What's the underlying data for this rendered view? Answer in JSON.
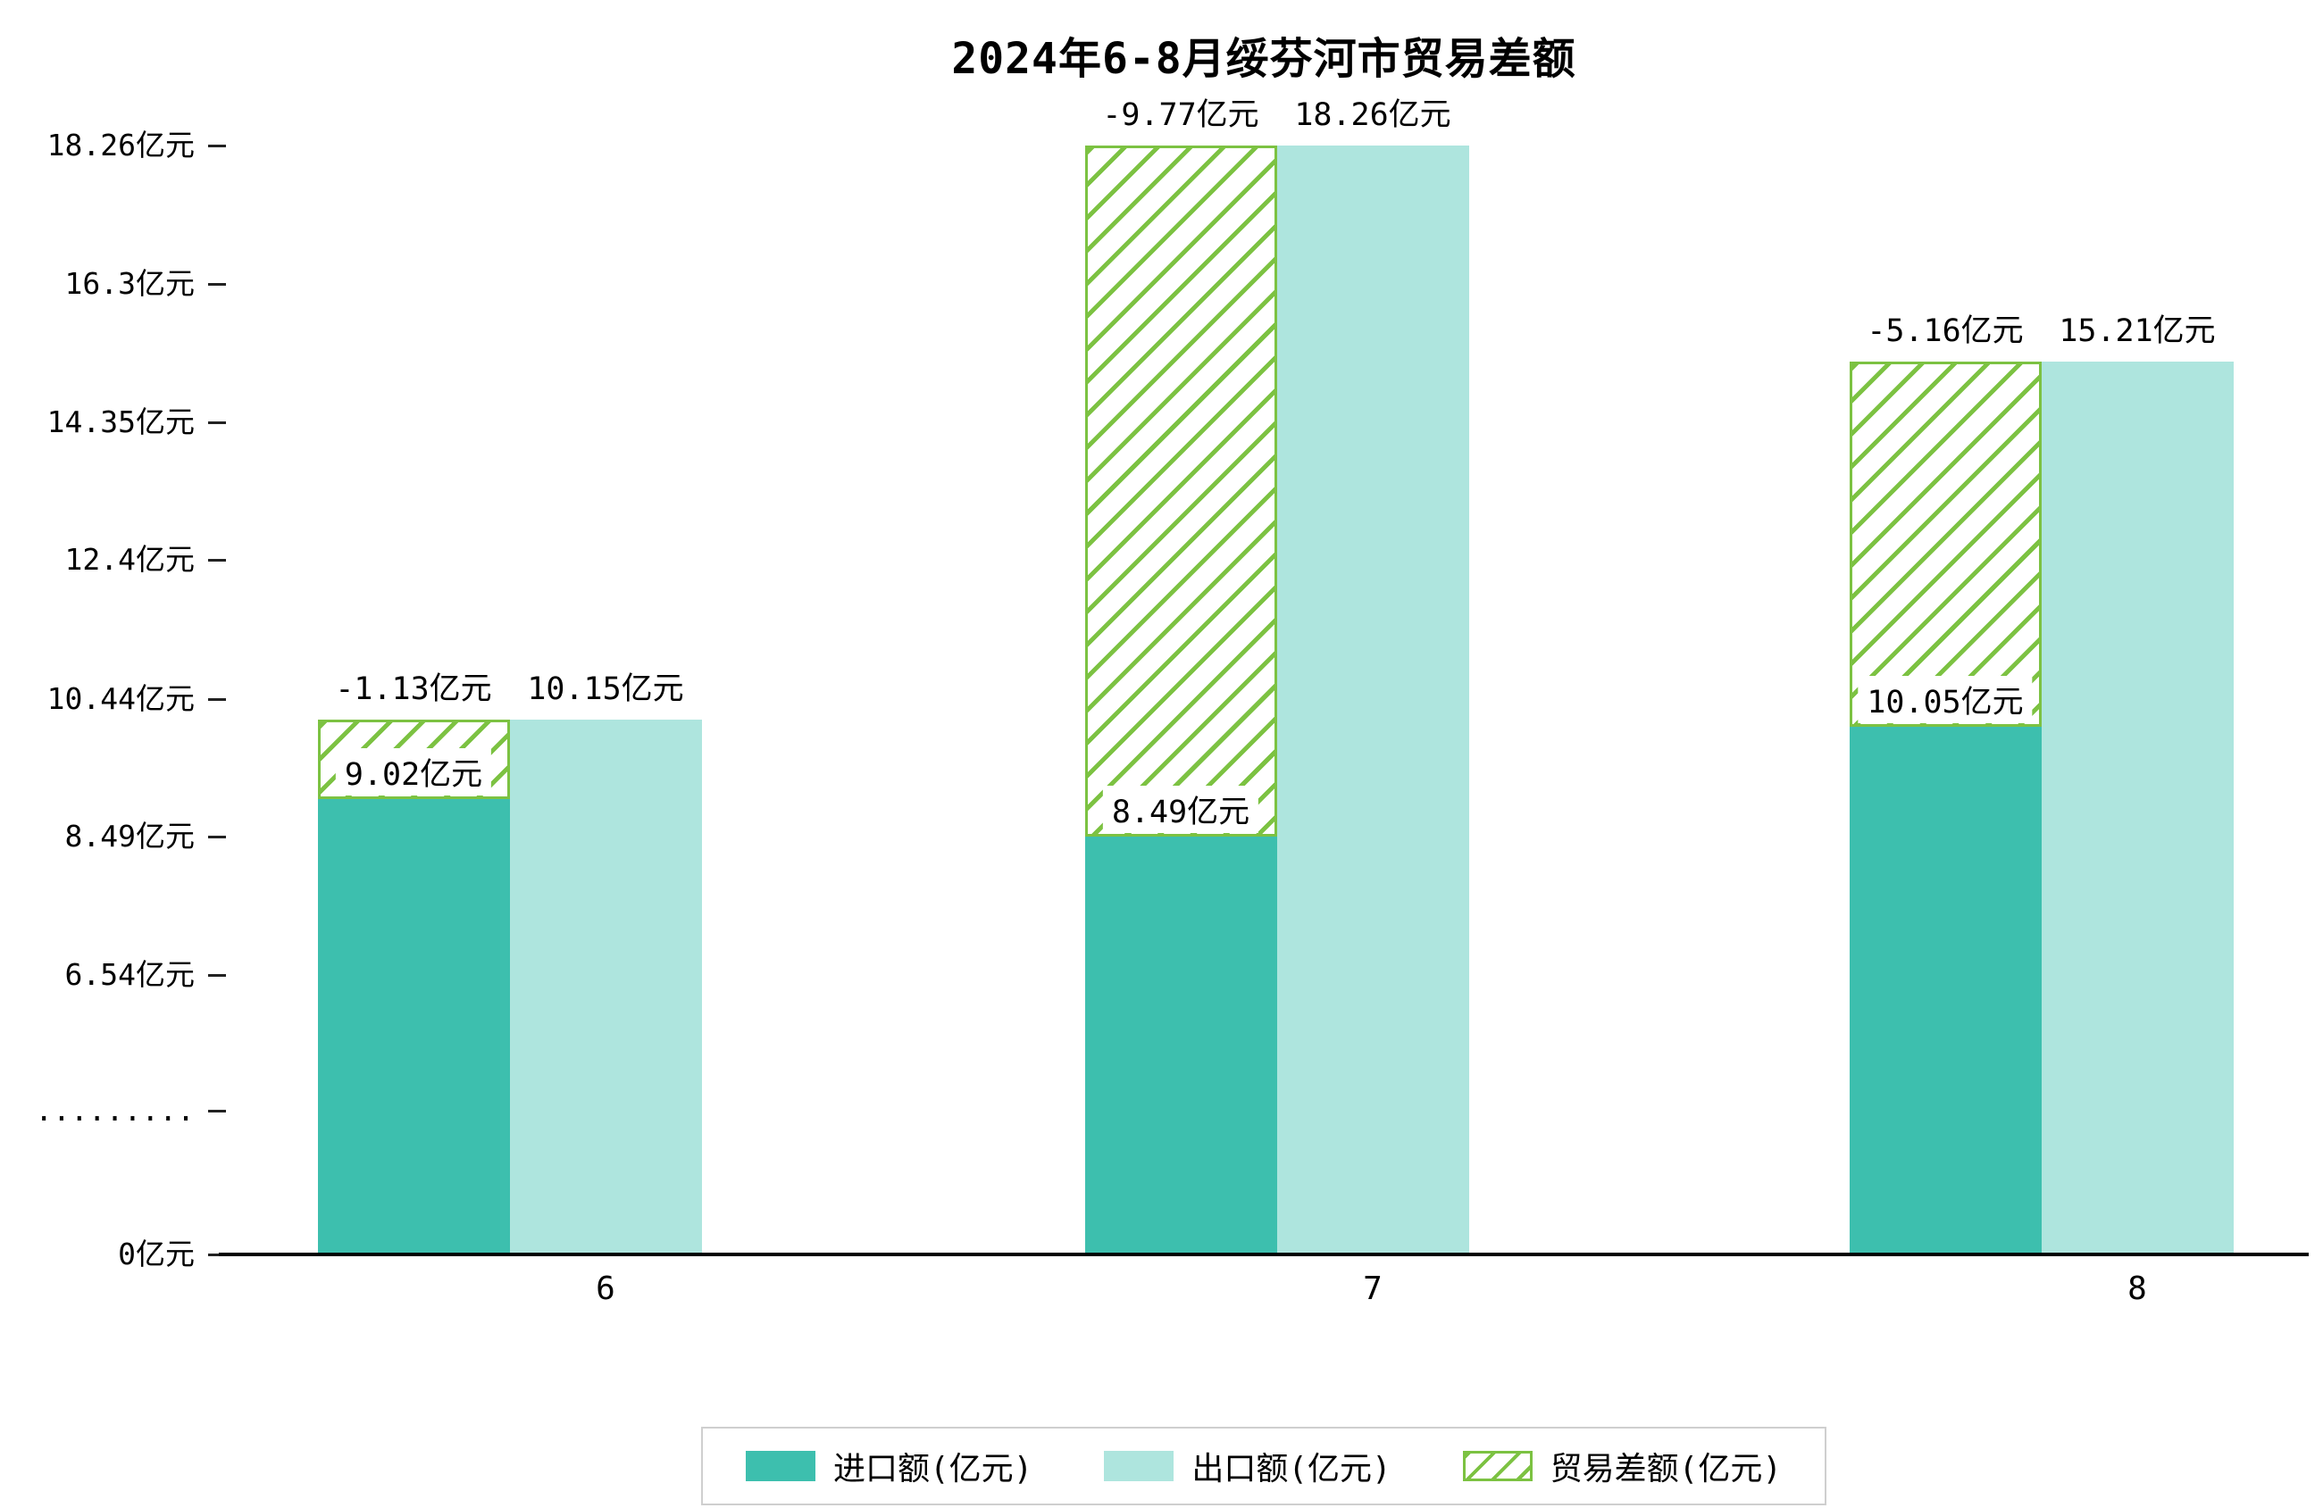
{
  "chart_data": {
    "type": "bar",
    "title": "2024年6-8月绥芬河市贸易差额",
    "unit": "亿元",
    "categories": [
      "6",
      "7",
      "8"
    ],
    "series": [
      {
        "name": "进口额(亿元)",
        "style": "solid",
        "color": "#3dbfae",
        "values": [
          9.02,
          8.49,
          10.05
        ],
        "labels": [
          "9.02亿元",
          "8.49亿元",
          "10.05亿元"
        ]
      },
      {
        "name": "出口额(亿元)",
        "style": "solid",
        "color": "#aee5de",
        "values": [
          10.15,
          18.26,
          15.21
        ],
        "labels": [
          "10.15亿元",
          "18.26亿元",
          "15.21亿元"
        ]
      },
      {
        "name": "贸易差额(亿元)",
        "style": "hatched",
        "color": "#7cc242",
        "values": [
          -1.13,
          -9.77,
          -5.16
        ],
        "labels": [
          "-1.13亿元",
          "-9.77亿元",
          "-5.16亿元"
        ]
      }
    ],
    "yticks": [
      {
        "label": "0亿元",
        "value": 0
      },
      {
        "label": ".........",
        "value": null
      },
      {
        "label": "6.54亿元",
        "value": 6.54
      },
      {
        "label": "8.49亿元",
        "value": 8.49
      },
      {
        "label": "10.44亿元",
        "value": 10.44
      },
      {
        "label": "12.4亿元",
        "value": 12.4
      },
      {
        "label": "14.35亿元",
        "value": 14.35
      },
      {
        "label": "16.3亿元",
        "value": 16.3
      },
      {
        "label": "18.26亿元",
        "value": 18.26
      }
    ],
    "axis_break_below": 6.54,
    "ylim": [
      0,
      18.26
    ],
    "grid": false,
    "legend_position": "bottom-center"
  },
  "colors": {
    "import": "#3dbfae",
    "export": "#aee5de",
    "balance": "#7cc242",
    "axis": "#000000",
    "legend_border": "#cfcfcf",
    "background": "#ffffff"
  }
}
